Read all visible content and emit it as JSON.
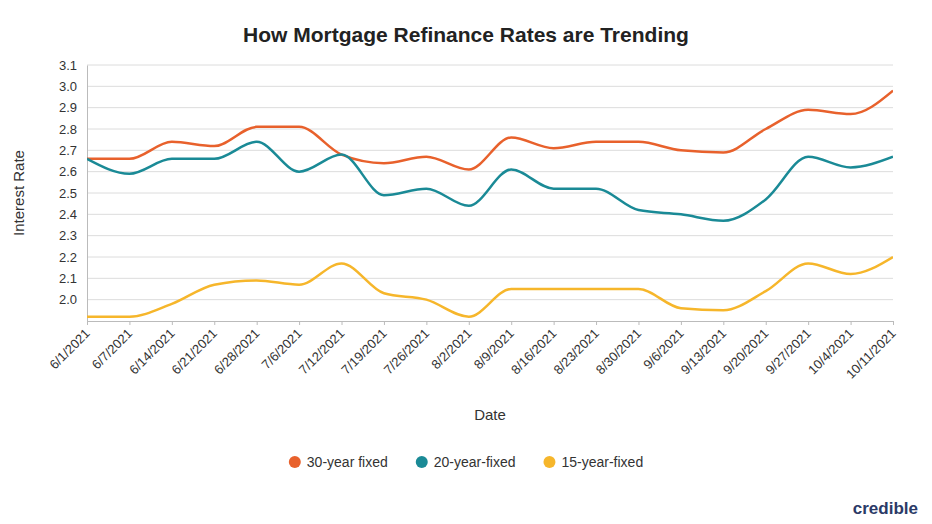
{
  "chart_data": {
    "type": "line",
    "title": "How Mortgage Refinance Rates are Trending",
    "x_label": "Date",
    "y_label": "Interest Rate",
    "categories": [
      "6/1/2021",
      "6/7/2021",
      "6/14/2021",
      "6/21/2021",
      "6/28/2021",
      "7/6/2021",
      "7/12/2021",
      "7/19/2021",
      "7/26/2021",
      "8/2/2021",
      "8/9/2021",
      "8/16/2021",
      "8/23/2021",
      "8/30/2021",
      "9/6/2021",
      "9/13/2021",
      "9/20/2021",
      "9/27/2021",
      "10/4/2021",
      "10/11/2021"
    ],
    "series": [
      {
        "name": "30-year fixed",
        "color": "#e8612c",
        "values": [
          2.66,
          2.66,
          2.74,
          2.72,
          2.81,
          2.81,
          2.68,
          2.64,
          2.67,
          2.61,
          2.76,
          2.71,
          2.74,
          2.74,
          2.7,
          2.69,
          2.8,
          2.89,
          2.87,
          2.98
        ]
      },
      {
        "name": "20-year-fixed",
        "color": "#1a8a96",
        "values": [
          2.66,
          2.59,
          2.66,
          2.66,
          2.74,
          2.6,
          2.68,
          2.49,
          2.52,
          2.44,
          2.61,
          2.52,
          2.52,
          2.42,
          2.4,
          2.37,
          2.47,
          2.67,
          2.62,
          2.67
        ]
      },
      {
        "name": "15-year-fixed",
        "color": "#f6b62b",
        "values": [
          1.92,
          1.92,
          1.98,
          2.07,
          2.09,
          2.07,
          2.17,
          2.03,
          2.0,
          1.92,
          2.05,
          2.05,
          2.05,
          2.05,
          1.96,
          1.95,
          2.04,
          2.17,
          2.12,
          2.2
        ]
      }
    ],
    "ylim": [
      1.9,
      3.1
    ],
    "yticks": [
      {
        "value": 2,
        "label": "2.0"
      },
      2.1,
      2.2,
      2.3,
      2.4,
      2.5,
      2.6,
      2.7,
      2.8,
      2.9,
      {
        "value": 3,
        "label": "3.0"
      },
      3.1
    ],
    "grid": true,
    "legend": "bottom",
    "annotations": [
      "credible"
    ]
  }
}
